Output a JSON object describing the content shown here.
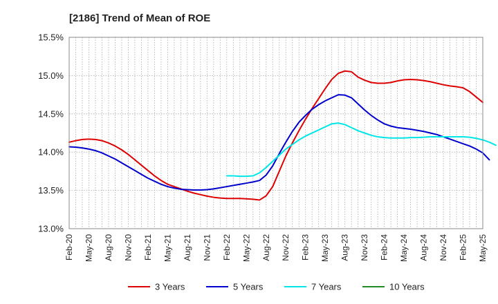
{
  "chart_data": {
    "type": "line",
    "title": "[2186]  Trend of Mean of ROE",
    "xlabel": "",
    "ylabel": "",
    "ylim": [
      13.0,
      15.5
    ],
    "y_ticks": [
      "13.0%",
      "13.5%",
      "14.0%",
      "14.5%",
      "15.0%",
      "15.5%"
    ],
    "x_ticks": [
      "Feb-20",
      "May-20",
      "Aug-20",
      "Nov-20",
      "Feb-21",
      "May-21",
      "Aug-21",
      "Nov-21",
      "Feb-22",
      "May-22",
      "Aug-22",
      "Nov-22",
      "Feb-23",
      "May-23",
      "Aug-23",
      "Nov-23",
      "Feb-24",
      "May-24",
      "Aug-24",
      "Nov-24",
      "Feb-25",
      "May-25"
    ],
    "grid": true,
    "legend_position": "bottom",
    "series": [
      {
        "name": "3 Years",
        "color": "#dd0000",
        "start": "Feb-20",
        "values": [
          14.13,
          14.15,
          14.165,
          14.17,
          14.165,
          14.15,
          14.12,
          14.08,
          14.03,
          13.97,
          13.9,
          13.83,
          13.76,
          13.69,
          13.63,
          13.58,
          13.55,
          13.52,
          13.49,
          13.465,
          13.445,
          13.425,
          13.41,
          13.4,
          13.395,
          13.395,
          13.395,
          13.39,
          13.385,
          13.375,
          13.43,
          13.55,
          13.75,
          13.95,
          14.12,
          14.28,
          14.43,
          14.57,
          14.7,
          14.83,
          14.95,
          15.03,
          15.06,
          15.05,
          14.98,
          14.94,
          14.91,
          14.9,
          14.9,
          14.91,
          14.93,
          14.945,
          14.95,
          14.945,
          14.935,
          14.92,
          14.9,
          14.88,
          14.865,
          14.855,
          14.84,
          14.79,
          14.72,
          14.65
        ]
      },
      {
        "name": "5 Years",
        "color": "#0000cc",
        "start": "Feb-20",
        "values": [
          14.07,
          14.065,
          14.055,
          14.04,
          14.02,
          13.99,
          13.95,
          13.91,
          13.86,
          13.81,
          13.76,
          13.71,
          13.66,
          13.62,
          13.58,
          13.55,
          13.53,
          13.515,
          13.51,
          13.505,
          13.505,
          13.51,
          13.52,
          13.535,
          13.55,
          13.565,
          13.58,
          13.595,
          13.61,
          13.63,
          13.7,
          13.82,
          13.98,
          14.13,
          14.27,
          14.39,
          14.48,
          14.56,
          14.62,
          14.67,
          14.71,
          14.75,
          14.745,
          14.71,
          14.63,
          14.55,
          14.48,
          14.42,
          14.37,
          14.34,
          14.32,
          14.31,
          14.3,
          14.285,
          14.27,
          14.25,
          14.23,
          14.2,
          14.17,
          14.14,
          14.11,
          14.08,
          14.04,
          13.99,
          13.9
        ]
      },
      {
        "name": "7 Years",
        "color": "#00e5e5",
        "start": "Feb-22",
        "values": [
          13.69,
          13.69,
          13.685,
          13.685,
          13.69,
          13.73,
          13.8,
          13.88,
          13.96,
          14.04,
          14.1,
          14.16,
          14.21,
          14.25,
          14.29,
          14.33,
          14.37,
          14.38,
          14.36,
          14.32,
          14.28,
          14.25,
          14.22,
          14.2,
          14.19,
          14.185,
          14.185,
          14.185,
          14.19,
          14.19,
          14.195,
          14.2,
          14.2,
          14.2,
          14.2,
          14.2,
          14.2,
          14.195,
          14.18,
          14.16,
          14.13,
          14.09
        ]
      },
      {
        "name": "10 Years",
        "color": "#228822",
        "start": "",
        "values": []
      }
    ]
  }
}
